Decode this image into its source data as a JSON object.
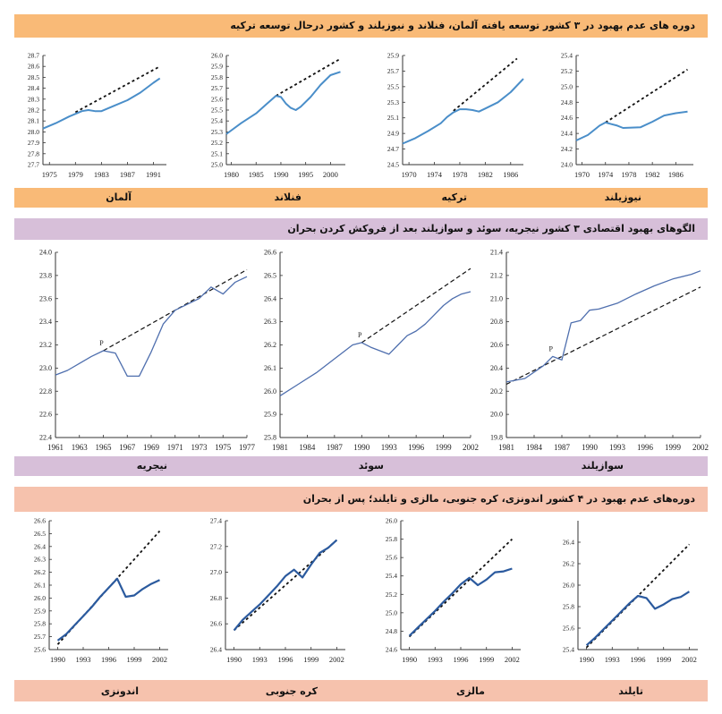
{
  "sections": [
    {
      "title": "دوره های عدم بهبود در ۳ کشور توسعه یافته آلمان، فنلاند و نیوزیلند و کشور درحال توسعه ترکیه",
      "color": "#f9ba77"
    },
    {
      "title": "الگوهای بهبود اقتصادی ۳ کشور نیجریه، سوئد و سوازیلند بعد از فروکش کردن بحران",
      "color": "#d7bfd9"
    },
    {
      "title": "دوره‌های عدم بهبود در ۴ کشور اندونزی، کره جنوبی، مالزی و تایلند؛ پس از بحران",
      "color": "#f6c2ad"
    }
  ],
  "styles": {
    "row1_line": "#4a8ec9",
    "row2_line": "#4f6fae",
    "row3_line": "#2b5a9e",
    "trend": "#111111"
  },
  "chart_data": [
    {
      "id": "germany",
      "type": "line",
      "country": "آلمان",
      "xlim": [
        1974,
        1993
      ],
      "ylim": [
        27.7,
        28.7
      ],
      "yticks": [
        "27.7",
        "27.8",
        "27.9",
        "28.0",
        "28.1",
        "28.2",
        "28.3",
        "28.4",
        "28.5",
        "28.6",
        "28.7"
      ],
      "xticks": [
        "1975",
        "1979",
        "1983",
        "1987",
        "1991"
      ],
      "series": [
        {
          "name": "actual",
          "x": [
            1974,
            1976,
            1978,
            1980,
            1981,
            1982,
            1983,
            1985,
            1987,
            1989,
            1991,
            1992
          ],
          "y": [
            28.03,
            28.08,
            28.14,
            28.19,
            28.2,
            28.19,
            28.19,
            28.24,
            28.29,
            28.36,
            28.45,
            28.49
          ]
        }
      ],
      "trend": {
        "x": [
          1979,
          1992
        ],
        "y": [
          28.18,
          28.6
        ]
      }
    },
    {
      "id": "finland",
      "type": "line",
      "country": "فنلاند",
      "xlim": [
        1979,
        2003
      ],
      "ylim": [
        25.0,
        26.0
      ],
      "yticks": [
        "25.0",
        "25.1",
        "25.2",
        "25.3",
        "25.4",
        "25.5",
        "25.6",
        "25.7",
        "25.8",
        "25.9",
        "26.0"
      ],
      "xticks": [
        "1980",
        "1985",
        "1990",
        "1995",
        "2000"
      ],
      "series": [
        {
          "name": "actual",
          "x": [
            1979,
            1982,
            1985,
            1987,
            1989,
            1990,
            1991,
            1992,
            1993,
            1994,
            1996,
            1998,
            2000,
            2002
          ],
          "y": [
            25.28,
            25.38,
            25.47,
            25.55,
            25.63,
            25.62,
            25.56,
            25.52,
            25.5,
            25.53,
            25.62,
            25.73,
            25.82,
            25.85
          ]
        }
      ],
      "trend": {
        "x": [
          1989,
          2002
        ],
        "y": [
          25.63,
          25.97
        ]
      }
    },
    {
      "id": "turkey",
      "type": "line",
      "country": "ترکیه",
      "xlim": [
        1969,
        1988
      ],
      "ylim": [
        24.5,
        25.9
      ],
      "yticks": [
        "24.5",
        "24.7",
        "24.9",
        "25.1",
        "25.3",
        "25.5",
        "25.7",
        "25.9"
      ],
      "xticks": [
        "1970",
        "1974",
        "1978",
        "1982",
        "1986"
      ],
      "series": [
        {
          "name": "actual",
          "x": [
            1969,
            1971,
            1973,
            1975,
            1976,
            1977,
            1978,
            1979,
            1980,
            1981,
            1982,
            1984,
            1986,
            1988
          ],
          "y": [
            24.77,
            24.84,
            24.93,
            25.03,
            25.11,
            25.17,
            25.21,
            25.21,
            25.2,
            25.18,
            25.22,
            25.3,
            25.43,
            25.6
          ]
        }
      ],
      "trend": {
        "x": [
          1977,
          1987
        ],
        "y": [
          25.19,
          25.86
        ]
      }
    },
    {
      "id": "newzealand",
      "type": "line",
      "country": "نیوزیلند",
      "xlim": [
        1969,
        1989
      ],
      "ylim": [
        24.0,
        25.4
      ],
      "yticks": [
        "24.0",
        "24.2",
        "24.4",
        "24.6",
        "24.8",
        "25.0",
        "25.2",
        "25.4"
      ],
      "xticks": [
        "1970",
        "1974",
        "1978",
        "1982",
        "1986"
      ],
      "series": [
        {
          "name": "actual",
          "x": [
            1969,
            1971,
            1973,
            1974,
            1975,
            1976,
            1977,
            1980,
            1982,
            1984,
            1986,
            1988
          ],
          "y": [
            24.31,
            24.38,
            24.5,
            24.54,
            24.52,
            24.5,
            24.47,
            24.48,
            24.55,
            24.63,
            24.66,
            24.68
          ]
        }
      ],
      "trend": {
        "x": [
          1974,
          1988
        ],
        "y": [
          24.54,
          25.22
        ]
      }
    },
    {
      "id": "nigeria",
      "type": "line",
      "country": "نیجریه",
      "xlim": [
        1961,
        1977
      ],
      "ylim": [
        22.4,
        24.0
      ],
      "yticks": [
        "22.4",
        "22.6",
        "22.8",
        "23.0",
        "23.2",
        "23.4",
        "23.6",
        "23.8",
        "24.0"
      ],
      "xticks": [
        "1961",
        "1963",
        "1965",
        "1967",
        "1969",
        "1971",
        "1973",
        "1975",
        "1977"
      ],
      "series": [
        {
          "name": "actual",
          "x": [
            1961,
            1962,
            1963,
            1964,
            1965,
            1966,
            1967,
            1968,
            1969,
            1970,
            1971,
            1972,
            1973,
            1974,
            1975,
            1976,
            1977
          ],
          "y": [
            22.94,
            22.98,
            23.04,
            23.1,
            23.15,
            23.13,
            22.93,
            22.93,
            23.14,
            23.38,
            23.5,
            23.55,
            23.6,
            23.7,
            23.64,
            23.74,
            23.79
          ]
        }
      ],
      "trend": {
        "x": [
          1965,
          1977
        ],
        "y": [
          23.15,
          23.85
        ]
      },
      "peak_label": "P",
      "peak": {
        "x": 1965,
        "y": 23.15
      }
    },
    {
      "id": "sweden",
      "type": "line",
      "country": "سوئد",
      "xlim": [
        1981,
        2002
      ],
      "ylim": [
        25.8,
        26.6
      ],
      "yticks": [
        "25.8",
        "25.9",
        "26.0",
        "26.1",
        "26.2",
        "26.3",
        "26.4",
        "26.5",
        "26.6"
      ],
      "xticks": [
        "1981",
        "1984",
        "1987",
        "1990",
        "1993",
        "1996",
        "1999",
        "2002"
      ],
      "series": [
        {
          "name": "actual",
          "x": [
            1981,
            1983,
            1985,
            1987,
            1989,
            1990,
            1991,
            1993,
            1994,
            1995,
            1996,
            1997,
            1998,
            1999,
            2000,
            2001,
            2002
          ],
          "y": [
            25.98,
            26.03,
            26.08,
            26.14,
            26.2,
            26.21,
            26.19,
            26.16,
            26.2,
            26.24,
            26.26,
            26.29,
            26.33,
            26.37,
            26.4,
            26.42,
            26.43
          ]
        }
      ],
      "trend": {
        "x": [
          1990,
          2002
        ],
        "y": [
          26.21,
          26.53
        ]
      },
      "peak_label": "P",
      "peak": {
        "x": 1990,
        "y": 26.21
      }
    },
    {
      "id": "swaziland",
      "type": "line",
      "country": "سوازیلند",
      "xlim": [
        1981,
        2002
      ],
      "ylim": [
        19.8,
        21.4
      ],
      "yticks": [
        "19.8",
        "20.0",
        "20.2",
        "20.4",
        "20.6",
        "20.8",
        "21.0",
        "21.2",
        "21.4"
      ],
      "xticks": [
        "1981",
        "1984",
        "1987",
        "1990",
        "1993",
        "1996",
        "1999",
        "2002"
      ],
      "series": [
        {
          "name": "actual",
          "x": [
            1981,
            1983,
            1985,
            1986,
            1987,
            1988,
            1989,
            1990,
            1991,
            1993,
            1995,
            1997,
            1999,
            2001,
            2002
          ],
          "y": [
            20.28,
            20.31,
            20.42,
            20.5,
            20.47,
            20.79,
            20.81,
            20.9,
            20.91,
            20.96,
            21.04,
            21.11,
            21.17,
            21.21,
            21.24
          ]
        }
      ],
      "trend": {
        "x": [
          1981,
          2002
        ],
        "y": [
          20.26,
          21.1
        ]
      },
      "peak_label": "P",
      "peak": {
        "x": 1986,
        "y": 20.5
      }
    },
    {
      "id": "indonesia",
      "type": "line",
      "country": "اندونزی",
      "xlim": [
        1989,
        2003
      ],
      "ylim": [
        25.6,
        26.6
      ],
      "yticks": [
        "25.6",
        "25.7",
        "25.8",
        "25.9",
        "26.0",
        "26.1",
        "26.2",
        "26.3",
        "26.4",
        "26.5",
        "26.6"
      ],
      "xticks": [
        "1990",
        "1993",
        "1996",
        "1999",
        "2002"
      ],
      "series": [
        {
          "name": "actual",
          "x": [
            1990,
            1991,
            1992,
            1993,
            1994,
            1995,
            1996,
            1997,
            1998,
            1999,
            2000,
            2001,
            2002
          ],
          "y": [
            25.67,
            25.72,
            25.79,
            25.86,
            25.93,
            26.01,
            26.08,
            26.15,
            26.01,
            26.02,
            26.07,
            26.11,
            26.14
          ]
        }
      ],
      "trend": {
        "x": [
          1990,
          2002
        ],
        "y": [
          25.64,
          26.52
        ]
      }
    },
    {
      "id": "southkorea",
      "type": "line",
      "country": "کره جنوبی",
      "xlim": [
        1989,
        2003
      ],
      "ylim": [
        26.4,
        27.4
      ],
      "yticks": [
        "26.4",
        "26.6",
        "26.8",
        "27.0",
        "27.2",
        "27.4"
      ],
      "xticks": [
        "1990",
        "1993",
        "1996",
        "1999",
        "2002"
      ],
      "series": [
        {
          "name": "actual",
          "x": [
            1990,
            1991,
            1992,
            1993,
            1994,
            1995,
            1996,
            1997,
            1998,
            1999,
            2000,
            2001,
            2002
          ],
          "y": [
            26.55,
            26.63,
            26.69,
            26.75,
            26.82,
            26.89,
            26.97,
            27.02,
            26.96,
            27.06,
            27.15,
            27.19,
            27.25
          ]
        }
      ],
      "trend": {
        "x": [
          1990,
          2002
        ],
        "y": [
          26.55,
          27.25
        ]
      }
    },
    {
      "id": "malaysia",
      "type": "line",
      "country": "مالزی",
      "xlim": [
        1989,
        2003
      ],
      "ylim": [
        24.6,
        26.0
      ],
      "yticks": [
        "24.6",
        "24.8",
        "25.0",
        "25.2",
        "25.4",
        "25.6",
        "25.8",
        "26.0"
      ],
      "xticks": [
        "1990",
        "1993",
        "1996",
        "1999",
        "2002"
      ],
      "series": [
        {
          "name": "actual",
          "x": [
            1990,
            1991,
            1992,
            1993,
            1994,
            1995,
            1996,
            1997,
            1998,
            1999,
            2000,
            2001,
            2002
          ],
          "y": [
            24.75,
            24.84,
            24.93,
            25.02,
            25.12,
            25.21,
            25.31,
            25.38,
            25.3,
            25.36,
            25.44,
            25.45,
            25.48
          ]
        }
      ],
      "trend": {
        "x": [
          1990,
          2002
        ],
        "y": [
          24.74,
          25.8
        ]
      }
    },
    {
      "id": "thailand",
      "type": "line",
      "country": "تایلند",
      "xlim": [
        1989,
        2003
      ],
      "ylim": [
        25.4,
        26.6
      ],
      "yticks": [
        "25.4",
        "25.6",
        "25.8",
        "26.0",
        "26.2",
        "26.4"
      ],
      "xticks": [
        "1990",
        "1993",
        "1996",
        "1999",
        "2002"
      ],
      "series": [
        {
          "name": "actual",
          "x": [
            1990,
            1991,
            1992,
            1993,
            1994,
            1995,
            1996,
            1997,
            1998,
            1999,
            2000,
            2001,
            2002
          ],
          "y": [
            25.44,
            25.51,
            25.59,
            25.67,
            25.75,
            25.83,
            25.9,
            25.88,
            25.78,
            25.82,
            25.87,
            25.89,
            25.94
          ]
        }
      ],
      "trend": {
        "x": [
          1990,
          2002
        ],
        "y": [
          25.42,
          26.38
        ]
      }
    }
  ]
}
